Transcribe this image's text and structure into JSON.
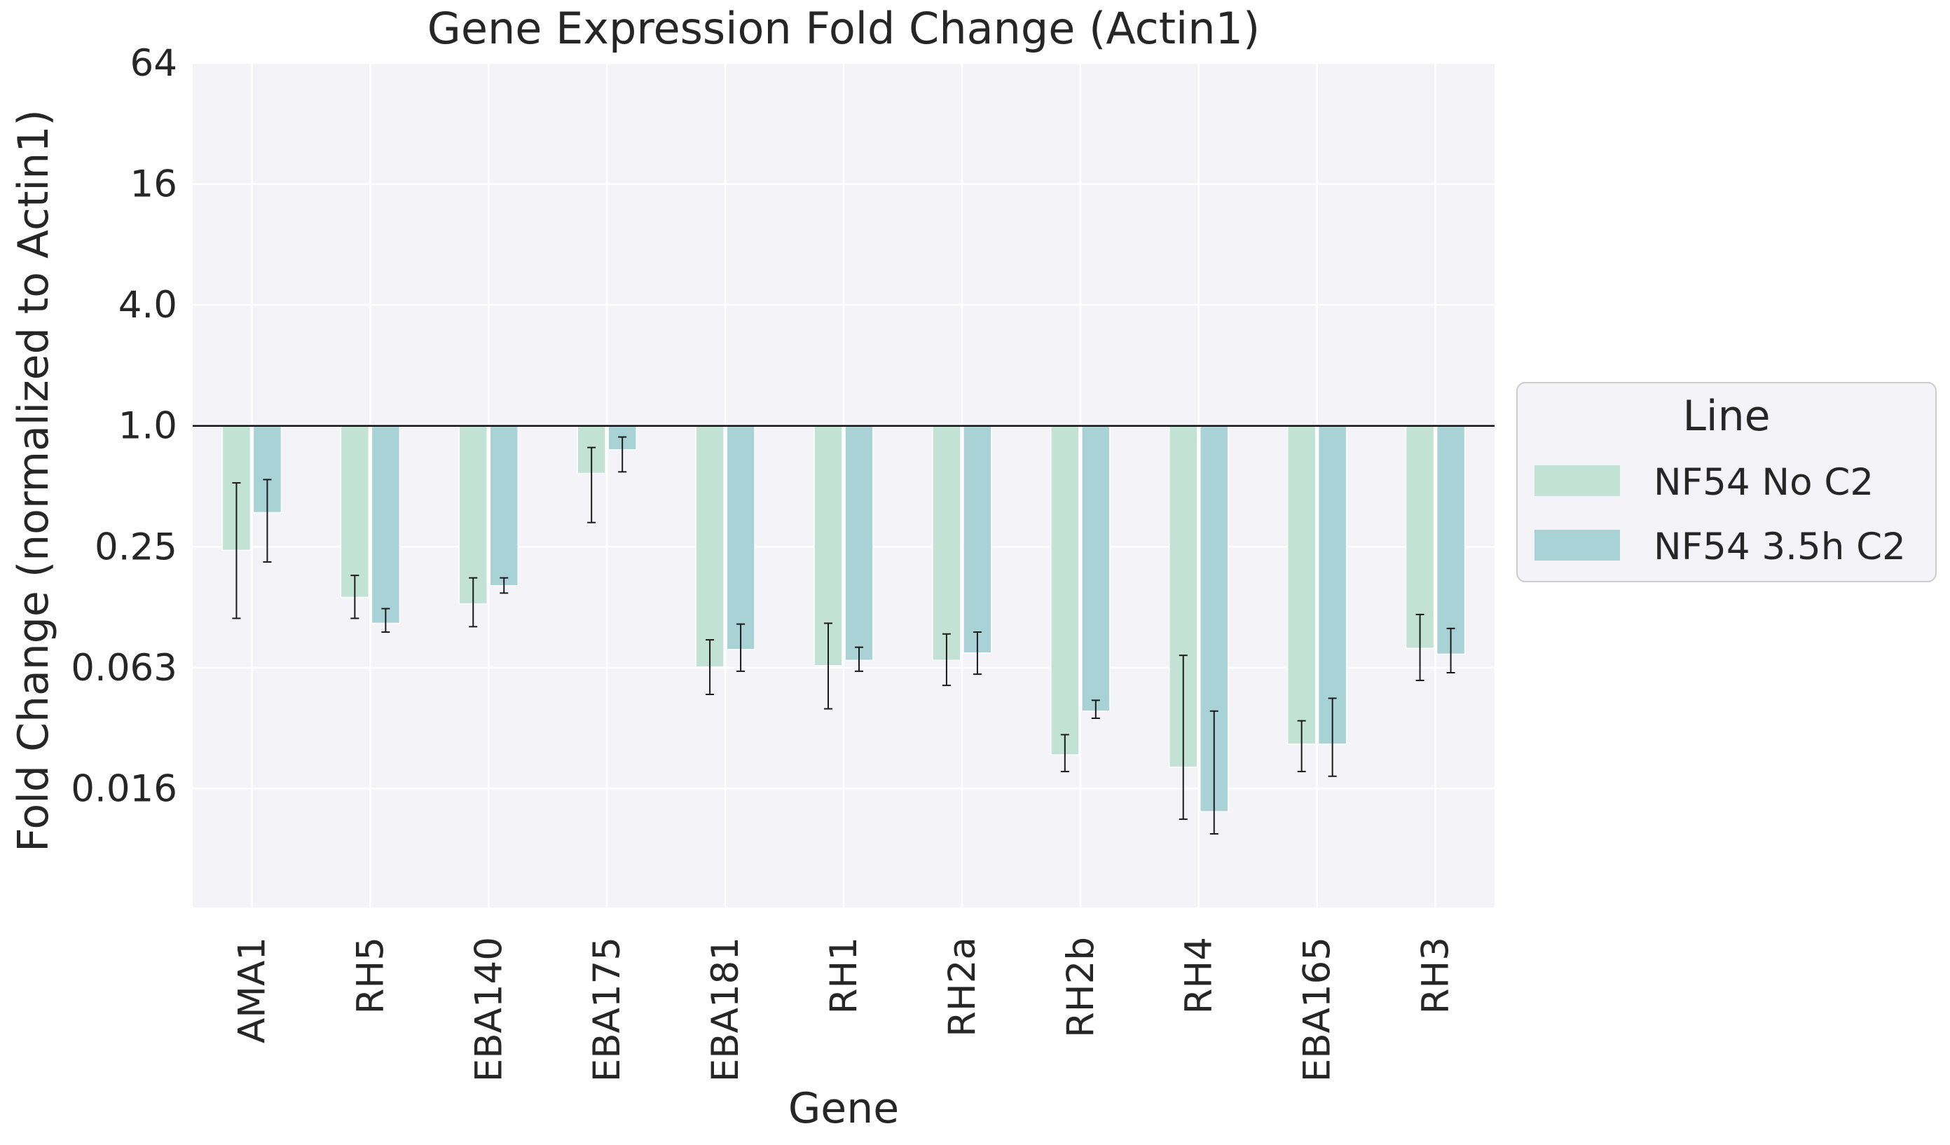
{
  "chart_data": {
    "type": "bar",
    "title": "Gene Expression Fold Change (Actin1)",
    "xlabel": "Gene",
    "ylabel": "Fold Change (normalized to Actin1)",
    "y_scale": "log2",
    "ylim": [
      0.004,
      64
    ],
    "yticks": [
      {
        "value": 64,
        "label": "64"
      },
      {
        "value": 16,
        "label": "16"
      },
      {
        "value": 4,
        "label": "4.0"
      },
      {
        "value": 1,
        "label": "1.0"
      },
      {
        "value": 0.25,
        "label": "0.25"
      },
      {
        "value": 0.0625,
        "label": "0.063"
      },
      {
        "value": 0.015625,
        "label": "0.016"
      }
    ],
    "reference_line": 1,
    "grid": true,
    "legend_position": "right",
    "legend_title": "Line",
    "categories": [
      "AMA1",
      "RH5",
      "EBA140",
      "EBA175",
      "EBA181",
      "RH1",
      "RH2a",
      "RH2b",
      "RH4",
      "EBA165",
      "RH3"
    ],
    "series": [
      {
        "name": "NF54 No C2",
        "color": "#c3e2d6",
        "values": [
          0.24,
          0.14,
          0.13,
          0.58,
          0.063,
          0.064,
          0.068,
          0.023,
          0.02,
          0.026,
          0.078
        ],
        "error_low": [
          0.11,
          0.11,
          0.1,
          0.33,
          0.046,
          0.039,
          0.051,
          0.019,
          0.011,
          0.019,
          0.054
        ],
        "error_high": [
          0.52,
          0.18,
          0.175,
          0.78,
          0.086,
          0.104,
          0.092,
          0.029,
          0.072,
          0.034,
          0.115
        ]
      },
      {
        "name": "NF54 3.5h C2",
        "color": "#a8d2d6",
        "values": [
          0.37,
          0.104,
          0.16,
          0.76,
          0.077,
          0.068,
          0.074,
          0.038,
          0.012,
          0.026,
          0.073
        ],
        "error_low": [
          0.21,
          0.094,
          0.147,
          0.59,
          0.06,
          0.06,
          0.058,
          0.035,
          0.0093,
          0.018,
          0.059
        ],
        "error_high": [
          0.54,
          0.123,
          0.175,
          0.88,
          0.103,
          0.079,
          0.094,
          0.043,
          0.038,
          0.044,
          0.098
        ]
      }
    ]
  }
}
